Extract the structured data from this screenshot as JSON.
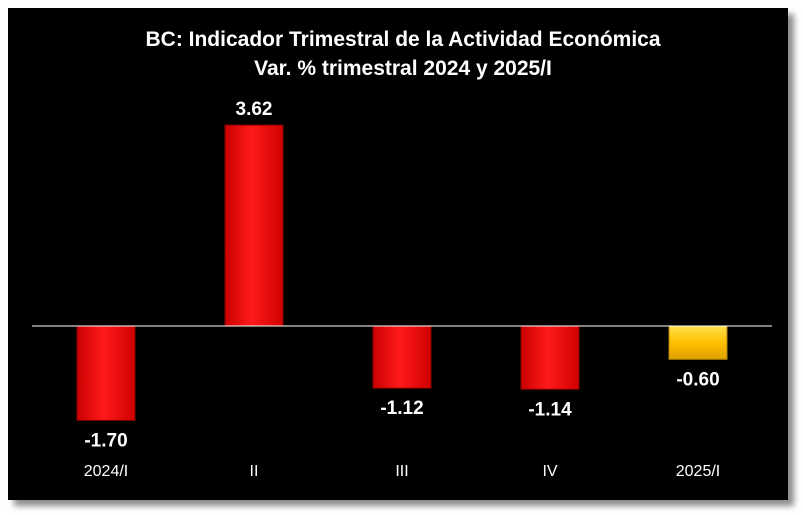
{
  "chart_data": {
    "type": "bar",
    "title": "BC: Indicador Trimestral de la Actividad Económica",
    "subtitle": "Var. % trimestral 2024 y 2025/I",
    "categories": [
      "2024/I",
      "II",
      "III",
      "IV",
      "2025/I"
    ],
    "values": [
      -1.7,
      3.62,
      -1.12,
      -1.14,
      -0.6
    ],
    "value_labels": [
      "-1.70",
      "3.62",
      "-1.12",
      "-1.14",
      "-0.60"
    ],
    "bar_colors": [
      "#ff0000",
      "#ff0000",
      "#ff0000",
      "#ff0000",
      "#ffc000"
    ],
    "xlabel": "",
    "ylabel": "",
    "ylim": [
      -2.0,
      4.0
    ],
    "grid": false,
    "legend": "none",
    "background": "#000000"
  }
}
